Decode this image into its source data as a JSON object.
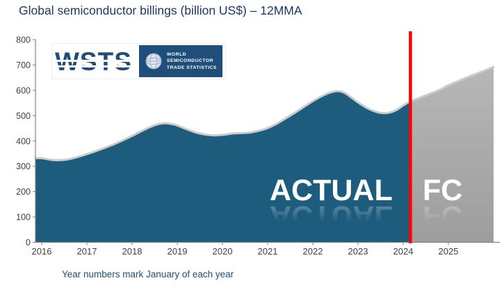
{
  "page": {
    "title": "Global semiconductor billings (billion US$) – 12MMA",
    "footnote": "Year numbers mark January of each year"
  },
  "logo": {
    "wordmark": "WSTS",
    "org_lines": [
      "WORLD",
      "SEMICONDUCTOR",
      "TRADE STATISTICS"
    ]
  },
  "labels": {
    "actual": "ACTUAL",
    "forecast": "FC"
  },
  "colors": {
    "title_text": "#1F3864",
    "footnote_text": "#1F4E79",
    "actual_fill": "#1E5C7E",
    "forecast_fill_top": "#B7B7B7",
    "forecast_fill_bottom": "#9D9D9D",
    "edge_highlight": "#CBCBCB",
    "divider_red": "#FE0000",
    "axis": "#808080",
    "tick_text": "#404040",
    "logo_blue": "#1E4E79"
  },
  "chart_data": {
    "type": "area",
    "title": "Global semiconductor billings (billion US$) – 12MMA",
    "x_unit": "year (decimal; .0 = January)",
    "y_unit": "billion US$, 12-month moving average",
    "xlim": [
      2016,
      2026
    ],
    "ylim": [
      0,
      800
    ],
    "x_ticks": [
      2016,
      2017,
      2018,
      2019,
      2020,
      2021,
      2022,
      2023,
      2024,
      2025
    ],
    "y_ticks": [
      0,
      100,
      200,
      300,
      400,
      500,
      600,
      700,
      800
    ],
    "grid": false,
    "legend": "none",
    "forecast_divider_x": 2024.16,
    "series": [
      {
        "name": "Actual",
        "style": "filled-area",
        "color": "#1E5C7E",
        "points": [
          [
            2016.0,
            332
          ],
          [
            2016.2,
            326
          ],
          [
            2016.4,
            324
          ],
          [
            2016.6,
            328
          ],
          [
            2016.8,
            337
          ],
          [
            2017.0,
            348
          ],
          [
            2017.2,
            360
          ],
          [
            2017.4,
            373
          ],
          [
            2017.6,
            387
          ],
          [
            2017.8,
            403
          ],
          [
            2018.0,
            420
          ],
          [
            2018.2,
            438
          ],
          [
            2018.4,
            455
          ],
          [
            2018.6,
            467
          ],
          [
            2018.75,
            470
          ],
          [
            2018.9,
            466
          ],
          [
            2019.0,
            461
          ],
          [
            2019.2,
            447
          ],
          [
            2019.4,
            434
          ],
          [
            2019.6,
            426
          ],
          [
            2019.8,
            422
          ],
          [
            2020.0,
            424
          ],
          [
            2020.2,
            429
          ],
          [
            2020.4,
            431
          ],
          [
            2020.6,
            433
          ],
          [
            2020.8,
            440
          ],
          [
            2021.0,
            451
          ],
          [
            2021.2,
            468
          ],
          [
            2021.4,
            489
          ],
          [
            2021.6,
            511
          ],
          [
            2021.8,
            534
          ],
          [
            2022.0,
            557
          ],
          [
            2022.2,
            577
          ],
          [
            2022.4,
            592
          ],
          [
            2022.55,
            597
          ],
          [
            2022.7,
            590
          ],
          [
            2022.85,
            572
          ],
          [
            2023.0,
            552
          ],
          [
            2023.2,
            530
          ],
          [
            2023.4,
            515
          ],
          [
            2023.55,
            510
          ],
          [
            2023.7,
            512
          ],
          [
            2023.85,
            522
          ],
          [
            2024.0,
            540
          ],
          [
            2024.16,
            557
          ]
        ]
      },
      {
        "name": "Forecast (FC)",
        "style": "filled-area",
        "color": "#A9A9A9",
        "points": [
          [
            2024.16,
            557
          ],
          [
            2024.3,
            566
          ],
          [
            2024.5,
            580
          ],
          [
            2024.7,
            594
          ],
          [
            2024.85,
            606
          ],
          [
            2025.0,
            620
          ],
          [
            2025.2,
            635
          ],
          [
            2025.4,
            650
          ],
          [
            2025.6,
            664
          ],
          [
            2025.8,
            678
          ],
          [
            2026.0,
            692
          ]
        ]
      }
    ]
  }
}
